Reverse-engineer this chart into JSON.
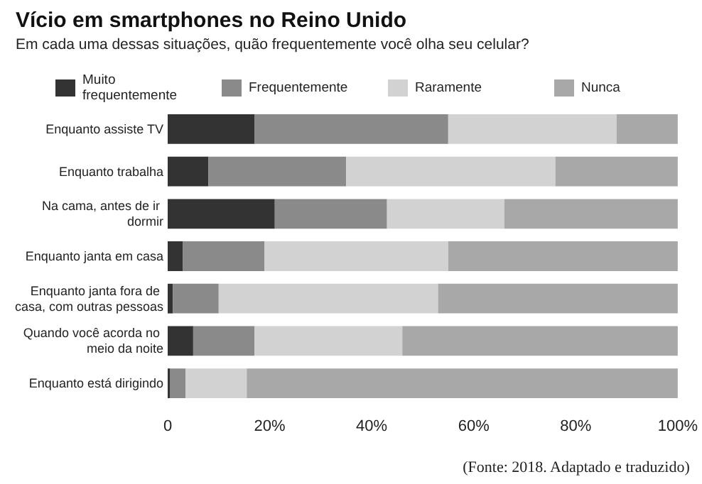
{
  "chart_data": {
    "type": "bar",
    "orientation": "horizontal",
    "stacked": true,
    "title": "Vício em smartphones no Reino Unido",
    "subtitle": "Em cada uma dessas situações, quão frequentemente você olha seu celular?",
    "categories": [
      "Enquanto assiste TV",
      "Enquanto trabalha",
      "Na cama, antes de ir dormir",
      "Enquanto janta em casa",
      "Enquanto janta fora de casa, com outras pessoas",
      "Quando você acorda no meio da noite",
      "Enquanto está dirigindo"
    ],
    "series": [
      {
        "name": "Muito frequentemente",
        "color": "#333333",
        "values": [
          17,
          8,
          21,
          3,
          1,
          5,
          0.5
        ]
      },
      {
        "name": "Frequentemente",
        "color": "#8a8a8a",
        "values": [
          38,
          27,
          22,
          16,
          9,
          12,
          3
        ]
      },
      {
        "name": "Raramente",
        "color": "#d2d2d2",
        "values": [
          33,
          41,
          23,
          36,
          43,
          29,
          12
        ]
      },
      {
        "name": "Nunca",
        "color": "#a8a8a8",
        "values": [
          12,
          24,
          34,
          45,
          47,
          54,
          84.5
        ]
      }
    ],
    "xlim": [
      0,
      100
    ],
    "xticks": [
      0,
      {
        "value": 20,
        "label": "20%"
      },
      {
        "value": 40,
        "label": "40%"
      },
      {
        "value": 60,
        "label": "60%"
      },
      {
        "value": 80,
        "label": "80%"
      },
      {
        "value": 100,
        "label": "100%"
      }
    ],
    "grid": false,
    "legend": "top",
    "annotations": [
      "(Fonte: 2018. Adaptado e traduzido)"
    ]
  }
}
